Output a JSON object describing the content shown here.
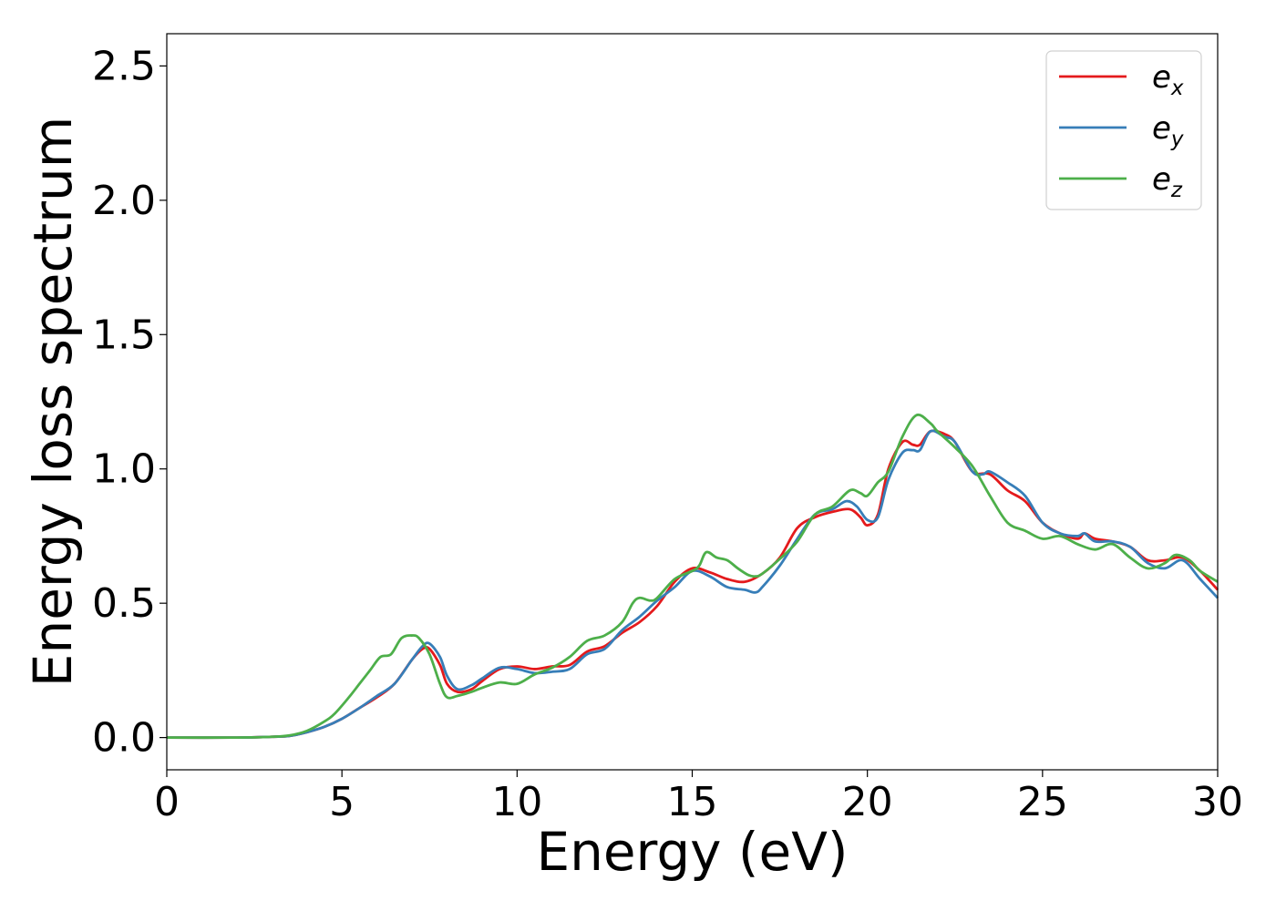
{
  "chart_data": {
    "type": "line",
    "title": "",
    "xlabel": "Energy (eV)",
    "ylabel": "Energy loss spectrum",
    "xlim": [
      0,
      30
    ],
    "ylim": [
      -0.12,
      2.62
    ],
    "xticks": [
      0,
      5,
      10,
      15,
      20,
      25,
      30
    ],
    "xtick_labels": [
      "0",
      "5",
      "10",
      "15",
      "20",
      "25",
      "30"
    ],
    "yticks": [
      0.0,
      0.5,
      1.0,
      1.5,
      2.0,
      2.5
    ],
    "ytick_labels": [
      "0.0",
      "0.5",
      "1.0",
      "1.5",
      "2.0",
      "2.5"
    ],
    "grid": false,
    "legend_position": "top-right",
    "series": [
      {
        "name": "e_x",
        "label_base": "e",
        "label_sub": "x",
        "color": "#e41a1c",
        "points": [
          [
            0,
            0
          ],
          [
            2,
            0
          ],
          [
            3,
            0.003
          ],
          [
            3.5,
            0.006
          ],
          [
            4,
            0.02
          ],
          [
            4.5,
            0.04
          ],
          [
            5,
            0.07
          ],
          [
            5.5,
            0.11
          ],
          [
            6,
            0.15
          ],
          [
            6.5,
            0.2
          ],
          [
            7,
            0.29
          ],
          [
            7.3,
            0.33
          ],
          [
            7.5,
            0.33
          ],
          [
            7.8,
            0.27
          ],
          [
            8,
            0.2
          ],
          [
            8.3,
            0.17
          ],
          [
            8.7,
            0.18
          ],
          [
            9,
            0.21
          ],
          [
            9.5,
            0.255
          ],
          [
            10,
            0.265
          ],
          [
            10.5,
            0.255
          ],
          [
            11,
            0.265
          ],
          [
            11.5,
            0.27
          ],
          [
            12,
            0.32
          ],
          [
            12.5,
            0.34
          ],
          [
            13,
            0.39
          ],
          [
            13.5,
            0.43
          ],
          [
            14,
            0.49
          ],
          [
            14.5,
            0.58
          ],
          [
            15,
            0.63
          ],
          [
            15.5,
            0.615
          ],
          [
            16,
            0.59
          ],
          [
            16.5,
            0.58
          ],
          [
            17,
            0.61
          ],
          [
            17.5,
            0.67
          ],
          [
            18,
            0.78
          ],
          [
            18.5,
            0.82
          ],
          [
            19,
            0.84
          ],
          [
            19.5,
            0.85
          ],
          [
            19.8,
            0.82
          ],
          [
            20,
            0.79
          ],
          [
            20.3,
            0.83
          ],
          [
            20.6,
            1.0
          ],
          [
            21,
            1.1
          ],
          [
            21.3,
            1.09
          ],
          [
            21.5,
            1.09
          ],
          [
            21.8,
            1.14
          ],
          [
            22.2,
            1.13
          ],
          [
            22.5,
            1.1
          ],
          [
            23,
            0.99
          ],
          [
            23.5,
            0.98
          ],
          [
            24,
            0.92
          ],
          [
            24.5,
            0.88
          ],
          [
            25,
            0.8
          ],
          [
            25.5,
            0.76
          ],
          [
            26,
            0.74
          ],
          [
            26.2,
            0.76
          ],
          [
            26.5,
            0.74
          ],
          [
            27,
            0.73
          ],
          [
            27.5,
            0.71
          ],
          [
            28,
            0.66
          ],
          [
            28.5,
            0.66
          ],
          [
            29,
            0.67
          ],
          [
            29.5,
            0.62
          ],
          [
            30,
            0.55
          ]
        ]
      },
      {
        "name": "e_y",
        "label_base": "e",
        "label_sub": "y",
        "color": "#377eb8",
        "points": [
          [
            0,
            0
          ],
          [
            2,
            0
          ],
          [
            3,
            0.003
          ],
          [
            3.5,
            0.006
          ],
          [
            4,
            0.02
          ],
          [
            4.5,
            0.04
          ],
          [
            5,
            0.07
          ],
          [
            5.5,
            0.11
          ],
          [
            6,
            0.155
          ],
          [
            6.5,
            0.2
          ],
          [
            7,
            0.29
          ],
          [
            7.3,
            0.34
          ],
          [
            7.5,
            0.35
          ],
          [
            7.8,
            0.3
          ],
          [
            8,
            0.23
          ],
          [
            8.3,
            0.18
          ],
          [
            8.7,
            0.195
          ],
          [
            9,
            0.22
          ],
          [
            9.5,
            0.26
          ],
          [
            10,
            0.255
          ],
          [
            10.5,
            0.24
          ],
          [
            11,
            0.245
          ],
          [
            11.5,
            0.255
          ],
          [
            12,
            0.31
          ],
          [
            12.5,
            0.33
          ],
          [
            13,
            0.4
          ],
          [
            13.5,
            0.45
          ],
          [
            14,
            0.51
          ],
          [
            14.5,
            0.56
          ],
          [
            15,
            0.62
          ],
          [
            15.5,
            0.6
          ],
          [
            16,
            0.56
          ],
          [
            16.5,
            0.55
          ],
          [
            16.8,
            0.54
          ],
          [
            17,
            0.56
          ],
          [
            17.5,
            0.64
          ],
          [
            18,
            0.74
          ],
          [
            18.5,
            0.83
          ],
          [
            19,
            0.85
          ],
          [
            19.4,
            0.88
          ],
          [
            19.7,
            0.86
          ],
          [
            20,
            0.81
          ],
          [
            20.3,
            0.82
          ],
          [
            20.6,
            0.96
          ],
          [
            21,
            1.06
          ],
          [
            21.3,
            1.07
          ],
          [
            21.5,
            1.07
          ],
          [
            21.8,
            1.14
          ],
          [
            22.2,
            1.12
          ],
          [
            22.5,
            1.1
          ],
          [
            23,
            0.99
          ],
          [
            23.3,
            0.98
          ],
          [
            23.5,
            0.99
          ],
          [
            24,
            0.95
          ],
          [
            24.5,
            0.9
          ],
          [
            25,
            0.8
          ],
          [
            25.5,
            0.76
          ],
          [
            26,
            0.75
          ],
          [
            26.2,
            0.76
          ],
          [
            26.5,
            0.73
          ],
          [
            27,
            0.73
          ],
          [
            27.5,
            0.71
          ],
          [
            28,
            0.65
          ],
          [
            28.5,
            0.63
          ],
          [
            29,
            0.66
          ],
          [
            29.5,
            0.59
          ],
          [
            30,
            0.52
          ]
        ]
      },
      {
        "name": "e_z",
        "label_base": "e",
        "label_sub": "z",
        "color": "#4daf4a",
        "points": [
          [
            0,
            0
          ],
          [
            2,
            0
          ],
          [
            3,
            0.003
          ],
          [
            3.5,
            0.008
          ],
          [
            4,
            0.025
          ],
          [
            4.5,
            0.06
          ],
          [
            4.8,
            0.09
          ],
          [
            5.2,
            0.15
          ],
          [
            5.5,
            0.2
          ],
          [
            5.8,
            0.25
          ],
          [
            6.1,
            0.3
          ],
          [
            6.4,
            0.31
          ],
          [
            6.7,
            0.37
          ],
          [
            7,
            0.38
          ],
          [
            7.2,
            0.37
          ],
          [
            7.5,
            0.31
          ],
          [
            7.8,
            0.2
          ],
          [
            8,
            0.15
          ],
          [
            8.3,
            0.155
          ],
          [
            8.7,
            0.17
          ],
          [
            9,
            0.185
          ],
          [
            9.5,
            0.205
          ],
          [
            10,
            0.2
          ],
          [
            10.5,
            0.235
          ],
          [
            11,
            0.26
          ],
          [
            11.5,
            0.3
          ],
          [
            12,
            0.36
          ],
          [
            12.5,
            0.38
          ],
          [
            13,
            0.43
          ],
          [
            13.3,
            0.5
          ],
          [
            13.5,
            0.52
          ],
          [
            13.8,
            0.51
          ],
          [
            14,
            0.52
          ],
          [
            14.5,
            0.59
          ],
          [
            15,
            0.62
          ],
          [
            15.2,
            0.64
          ],
          [
            15.4,
            0.69
          ],
          [
            15.7,
            0.67
          ],
          [
            16,
            0.66
          ],
          [
            16.3,
            0.63
          ],
          [
            16.6,
            0.605
          ],
          [
            16.8,
            0.6
          ],
          [
            17,
            0.61
          ],
          [
            17.5,
            0.665
          ],
          [
            18,
            0.73
          ],
          [
            18.5,
            0.83
          ],
          [
            19,
            0.86
          ],
          [
            19.5,
            0.92
          ],
          [
            19.8,
            0.91
          ],
          [
            20,
            0.9
          ],
          [
            20.3,
            0.95
          ],
          [
            20.6,
            0.99
          ],
          [
            21,
            1.12
          ],
          [
            21.4,
            1.2
          ],
          [
            21.8,
            1.17
          ],
          [
            22,
            1.14
          ],
          [
            22.5,
            1.08
          ],
          [
            23,
            1.01
          ],
          [
            23.5,
            0.9
          ],
          [
            24,
            0.8
          ],
          [
            24.5,
            0.77
          ],
          [
            25,
            0.74
          ],
          [
            25.5,
            0.75
          ],
          [
            26,
            0.72
          ],
          [
            26.5,
            0.7
          ],
          [
            27,
            0.72
          ],
          [
            27.5,
            0.67
          ],
          [
            28,
            0.63
          ],
          [
            28.5,
            0.65
          ],
          [
            28.8,
            0.68
          ],
          [
            29.2,
            0.66
          ],
          [
            29.5,
            0.62
          ],
          [
            30,
            0.58
          ]
        ]
      }
    ]
  }
}
